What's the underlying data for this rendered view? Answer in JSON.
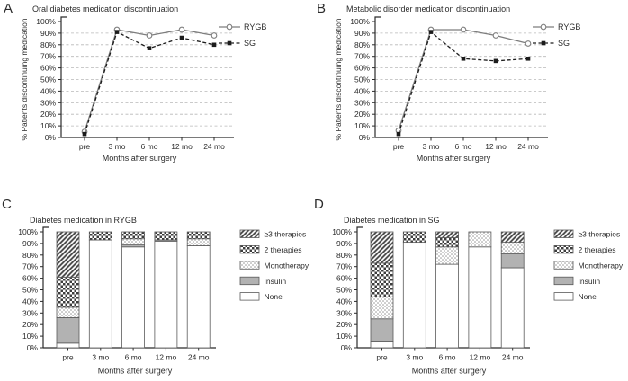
{
  "colors": {
    "background": "#ffffff",
    "text": "#2b2b2b",
    "axis": "#2b2b2b",
    "grid": "#b8b8b8",
    "rygb_line": "#7d7d7d",
    "sg_line": "#1c1c1c",
    "insulin_fill": "#b2b2b2",
    "hatch_bg": "#4f4f4f",
    "hatch_stripe": "#ffffff",
    "checker_dark": "#3d3d3d",
    "dot_gray": "#8f8f8f",
    "bar_border": "#5a5a5a"
  },
  "chart_data": [
    {
      "id": "A",
      "type": "line",
      "title": "Oral diabetes medication discontinuation",
      "xlabel": "Months after surgery",
      "ylabel": "% Patients discontinuing medication",
      "categories": [
        "pre",
        "3 mo",
        "6 mo",
        "12 mo",
        "24 mo"
      ],
      "ylim": [
        0,
        100
      ],
      "ytick_step": 10,
      "ytick_suffix": "%",
      "grid": "dashed horizontal lines at each 10%",
      "legend_position": "right",
      "series": [
        {
          "name": "RYGB",
          "values": [
            5,
            93,
            88,
            93,
            88
          ],
          "line": "solid",
          "marker": "open-circle",
          "color": "#7d7d7d"
        },
        {
          "name": "SG",
          "values": [
            3,
            91,
            77,
            86,
            80
          ],
          "line": "dashed",
          "marker": "filled-square",
          "color": "#1c1c1c"
        }
      ]
    },
    {
      "id": "B",
      "type": "line",
      "title": "Metabolic disorder medication discontinuation",
      "xlabel": "Months after surgery",
      "ylabel": "% Patients discontinuing medication",
      "categories": [
        "pre",
        "3 mo",
        "6 mo",
        "12 mo",
        "24 mo"
      ],
      "ylim": [
        0,
        100
      ],
      "ytick_step": 10,
      "ytick_suffix": "%",
      "grid": "dashed horizontal lines at each 10%",
      "legend_position": "right",
      "series": [
        {
          "name": "RYGB",
          "values": [
            6,
            93,
            93,
            88,
            81
          ],
          "line": "solid",
          "marker": "open-circle",
          "color": "#7d7d7d"
        },
        {
          "name": "SG",
          "values": [
            3,
            91,
            68,
            66,
            68
          ],
          "line": "dashed",
          "marker": "filled-square",
          "color": "#1c1c1c"
        }
      ]
    },
    {
      "id": "C",
      "type": "stacked-bar",
      "title": "Diabetes medication in RYGB",
      "xlabel": "Months after surgery",
      "categories": [
        "pre",
        "3 mo",
        "6 mo",
        "12 mo",
        "24 mo"
      ],
      "ylim": [
        0,
        100
      ],
      "ytick_step": 10,
      "ytick_suffix": "%",
      "grid": "off",
      "legend_position": "right",
      "stack_order_bottom_to_top": [
        "None",
        "Insulin",
        "Monotherapy",
        "2 therapies",
        "≥3 therapies"
      ],
      "legend_top_to_bottom": [
        "≥3 therapies",
        "2 therapies",
        "Monotherapy",
        "Insulin",
        "None"
      ],
      "series": [
        {
          "name": "None",
          "pattern": "plain-white",
          "values": [
            4,
            93,
            87,
            92,
            88
          ]
        },
        {
          "name": "Insulin",
          "pattern": "solid-gray",
          "values": [
            22,
            0,
            2,
            1,
            0
          ]
        },
        {
          "name": "Monotherapy",
          "pattern": "dotted",
          "values": [
            9,
            0,
            5,
            0,
            6
          ]
        },
        {
          "name": "2 therapies",
          "pattern": "checkerboard",
          "values": [
            26,
            7,
            6,
            7,
            6
          ]
        },
        {
          "name": "≥3 therapies",
          "pattern": "diagonal-hatch",
          "values": [
            39,
            0,
            0,
            0,
            0
          ]
        }
      ]
    },
    {
      "id": "D",
      "type": "stacked-bar",
      "title": "Diabetes medication in SG",
      "xlabel": "Months after surgery",
      "categories": [
        "pre",
        "3 mo",
        "6 mo",
        "12 mo",
        "24 mo"
      ],
      "ylim": [
        0,
        100
      ],
      "ytick_step": 10,
      "ytick_suffix": "%",
      "grid": "off",
      "legend_position": "right",
      "stack_order_bottom_to_top": [
        "None",
        "Insulin",
        "Monotherapy",
        "2 therapies",
        "≥3 therapies"
      ],
      "legend_top_to_bottom": [
        "≥3 therapies",
        "2 therapies",
        "Monotherapy",
        "Insulin",
        "None"
      ],
      "series": [
        {
          "name": "None",
          "pattern": "plain-white",
          "values": [
            5,
            91,
            72,
            87,
            69
          ]
        },
        {
          "name": "Insulin",
          "pattern": "solid-gray",
          "values": [
            20,
            0,
            0,
            0,
            12
          ]
        },
        {
          "name": "Monotherapy",
          "pattern": "dotted",
          "values": [
            19,
            0,
            15,
            13,
            10
          ]
        },
        {
          "name": "2 therapies",
          "pattern": "checkerboard",
          "values": [
            29,
            9,
            8,
            0,
            0
          ]
        },
        {
          "name": "≥3 therapies",
          "pattern": "diagonal-hatch",
          "values": [
            27,
            0,
            5,
            0,
            9
          ]
        }
      ]
    }
  ]
}
